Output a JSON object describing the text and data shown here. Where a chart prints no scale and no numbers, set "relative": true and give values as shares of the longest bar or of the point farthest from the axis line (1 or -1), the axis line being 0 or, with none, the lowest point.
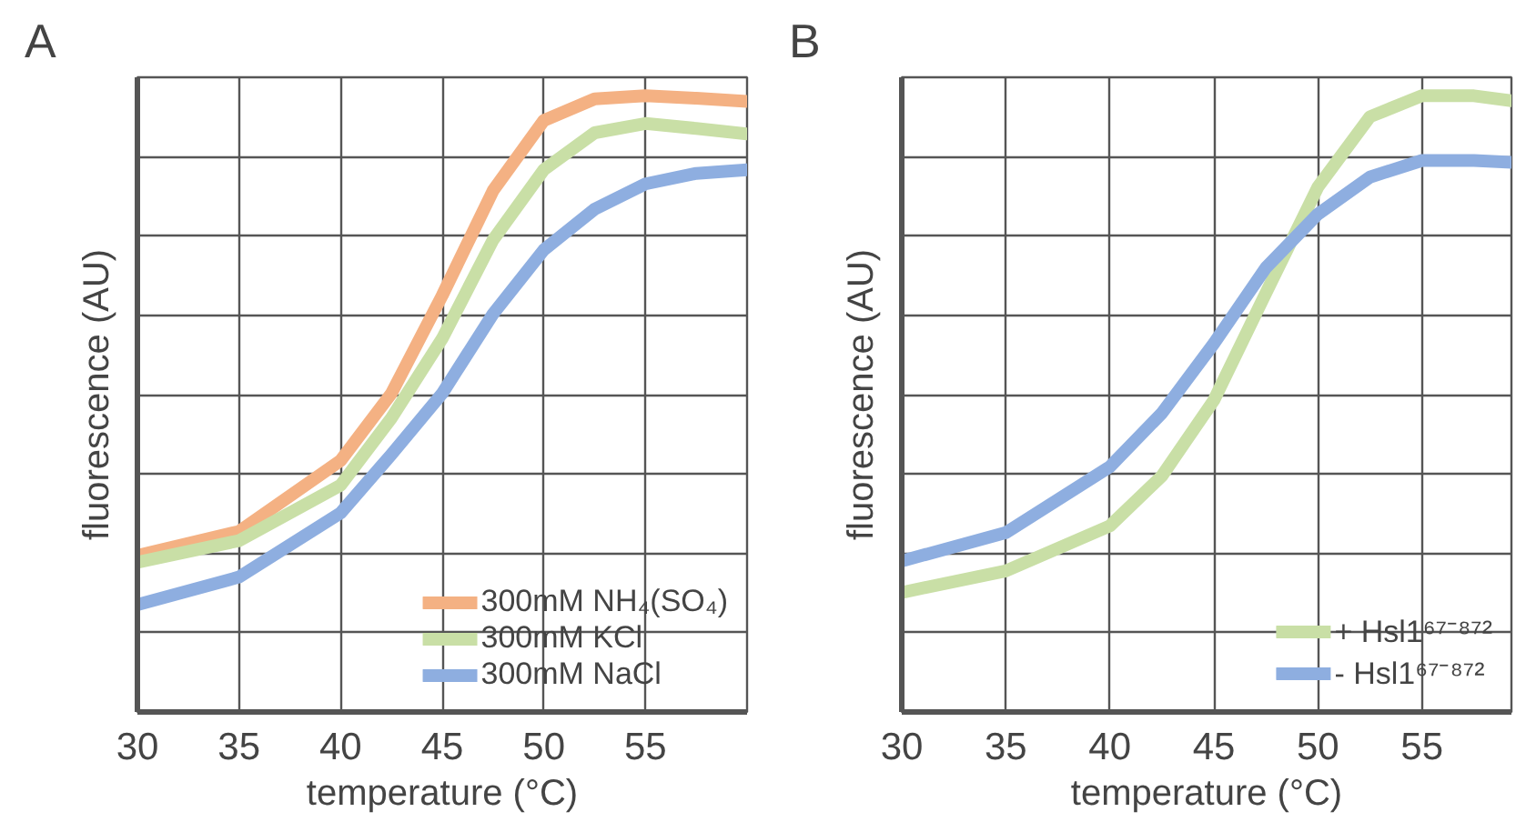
{
  "chart_data": [
    {
      "type": "line",
      "title": "A",
      "xlabel": "temperature (°C)",
      "ylabel": "fluorescence (AU)",
      "relative": true,
      "x": [
        30,
        35,
        40,
        42.5,
        45,
        47.5,
        50,
        52.5,
        55,
        57.5,
        60
      ],
      "xlim": [
        30,
        60
      ],
      "xticks": [
        30,
        35,
        40,
        45,
        50,
        55
      ],
      "grid": true,
      "legend": "bottom right",
      "tick_labels": "x",
      "line_style": "solid",
      "series": [
        {
          "name": "300mM NH₄(SO₄)",
          "color": "#f4b183",
          "values": [
            0.254,
            0.293,
            0.408,
            0.517,
            0.676,
            0.846,
            0.96,
            0.995,
            1.0,
            0.996,
            0.991
          ]
        },
        {
          "name": "300mM KCl",
          "color": "#c9dfa6",
          "values": [
            0.243,
            0.278,
            0.368,
            0.477,
            0.606,
            0.766,
            0.88,
            0.94,
            0.955,
            0.947,
            0.938
          ]
        },
        {
          "name": "300mM NaCl",
          "color": "#8eaee0",
          "values": [
            0.174,
            0.219,
            0.323,
            0.418,
            0.517,
            0.646,
            0.75,
            0.816,
            0.857,
            0.874,
            0.88
          ]
        }
      ]
    },
    {
      "type": "line",
      "title": "B",
      "xlabel": "temperature (°C)",
      "ylabel": "fluorescence (AU)",
      "relative": true,
      "x": [
        30,
        35,
        40,
        42.5,
        45,
        47.5,
        50,
        52.5,
        55,
        57.5,
        59.3
      ],
      "xlim": [
        30,
        59.3
      ],
      "xticks": [
        30,
        35,
        40,
        45,
        50,
        55
      ],
      "grid": true,
      "legend": "bottom right",
      "tick_labels": "x",
      "line_style": "solid",
      "series": [
        {
          "name": "+ Hsl1⁶⁷⁻⁸⁷²",
          "color": "#c9dfa6",
          "values": [
            0.194,
            0.229,
            0.302,
            0.383,
            0.506,
            0.68,
            0.852,
            0.966,
            1.0,
            1.0,
            0.992
          ]
        },
        {
          "name": "- Hsl1⁶⁷⁻⁸⁷²",
          "color": "#8eaee0",
          "values": [
            0.245,
            0.291,
            0.398,
            0.485,
            0.598,
            0.721,
            0.808,
            0.868,
            0.895,
            0.895,
            0.892
          ]
        }
      ]
    }
  ]
}
